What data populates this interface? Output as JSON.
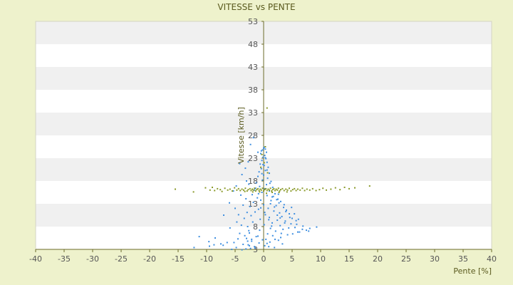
{
  "chart_data": {
    "type": "scatter",
    "title": "VITESSE vs PENTE",
    "xlabel": "Pente [%]",
    "ylabel": "Vitesse [km/h]",
    "xlim": [
      -40,
      40
    ],
    "ylim": [
      3,
      53
    ],
    "x_ticks": [
      -40,
      -35,
      -30,
      -25,
      -20,
      -15,
      -10,
      -5,
      0,
      5,
      10,
      15,
      20,
      25,
      30,
      35,
      40
    ],
    "y_ticks": [
      3,
      8,
      13,
      18,
      23,
      28,
      33,
      38,
      43,
      48,
      53
    ],
    "grid": "horizontal-bands",
    "legend": "none",
    "colors": {
      "plot_bg": "#ffffff",
      "band": "#f0f0f0",
      "page_bg": "#eef2cc",
      "series_blue": "#3f8fe0",
      "series_olive": "#8a9a2a",
      "axis_line": "#6b6b2a"
    },
    "series": [
      {
        "color": "#3f8fe0",
        "points": [
          [
            0.1,
            25.4
          ],
          [
            0.3,
            25.0
          ],
          [
            -0.2,
            24.8
          ],
          [
            0.5,
            24.3
          ],
          [
            -0.5,
            24.0
          ],
          [
            0.2,
            23.6
          ],
          [
            -0.1,
            23.2
          ],
          [
            0.4,
            22.9
          ],
          [
            -0.3,
            22.5
          ],
          [
            0.6,
            22.1
          ],
          [
            -0.6,
            21.7
          ],
          [
            0.1,
            21.4
          ],
          [
            0.8,
            21.0
          ],
          [
            -0.4,
            20.7
          ],
          [
            0.3,
            20.3
          ],
          [
            -0.8,
            20.0
          ],
          [
            1.0,
            19.7
          ],
          [
            0.0,
            19.3
          ],
          [
            -1.0,
            19.0
          ],
          [
            0.7,
            18.6
          ],
          [
            -0.2,
            18.2
          ],
          [
            1.3,
            17.9
          ],
          [
            -1.3,
            17.6
          ],
          [
            0.5,
            17.2
          ],
          [
            -0.7,
            16.8
          ],
          [
            1.6,
            16.6
          ],
          [
            0.2,
            16.3
          ],
          [
            -1.6,
            16.0
          ],
          [
            1.0,
            15.8
          ],
          [
            -0.3,
            15.5
          ],
          [
            2.0,
            15.2
          ],
          [
            -2.0,
            15.0
          ],
          [
            0.6,
            14.8
          ],
          [
            1.5,
            14.5
          ],
          [
            -1.1,
            14.3
          ],
          [
            2.5,
            14.0
          ],
          [
            -0.5,
            13.8
          ],
          [
            3.0,
            13.5
          ],
          [
            -1.8,
            13.3
          ],
          [
            1.2,
            13.0
          ],
          [
            0.0,
            12.8
          ],
          [
            2.2,
            12.6
          ],
          [
            -2.4,
            12.4
          ],
          [
            3.5,
            12.2
          ],
          [
            0.8,
            12.0
          ],
          [
            -0.9,
            11.8
          ],
          [
            4.0,
            11.6
          ],
          [
            1.8,
            11.4
          ],
          [
            -1.5,
            11.2
          ],
          [
            2.8,
            11.0
          ],
          [
            4.5,
            10.8
          ],
          [
            0.3,
            10.6
          ],
          [
            -2.2,
            10.4
          ],
          [
            3.2,
            10.2
          ],
          [
            1.0,
            10.0
          ],
          [
            5.0,
            9.8
          ],
          [
            -0.6,
            9.6
          ],
          [
            2.4,
            9.4
          ],
          [
            3.8,
            9.2
          ],
          [
            -1.9,
            9.0
          ],
          [
            1.5,
            8.8
          ],
          [
            4.8,
            8.6
          ],
          [
            0.1,
            8.4
          ],
          [
            2.9,
            8.2
          ],
          [
            -2.8,
            8.0
          ],
          [
            5.5,
            7.8
          ],
          [
            1.2,
            7.6
          ],
          [
            3.4,
            7.4
          ],
          [
            -0.7,
            7.2
          ],
          [
            2.1,
            7.0
          ],
          [
            6.0,
            6.8
          ],
          [
            -2.5,
            6.6
          ],
          [
            0.7,
            6.4
          ],
          [
            4.2,
            6.2
          ],
          [
            1.6,
            6.0
          ],
          [
            -1.3,
            5.8
          ],
          [
            3.0,
            5.6
          ],
          [
            -3.0,
            5.4
          ],
          [
            0.4,
            5.2
          ],
          [
            2.6,
            5.0
          ],
          [
            -2.1,
            4.8
          ],
          [
            1.1,
            4.6
          ],
          [
            -0.8,
            4.4
          ],
          [
            3.3,
            4.2
          ],
          [
            -2.7,
            4.0
          ],
          [
            0.2,
            3.8
          ],
          [
            -1.6,
            3.6
          ],
          [
            1.9,
            3.4
          ],
          [
            -2.3,
            3.2
          ],
          [
            0.9,
            3.6
          ],
          [
            -1.8,
            27.5
          ],
          [
            -2.3,
            26.0
          ],
          [
            -1.0,
            24.3
          ],
          [
            -2.7,
            22.2
          ],
          [
            -4.2,
            21.8
          ],
          [
            -3.2,
            20.8
          ],
          [
            -3.8,
            19.4
          ],
          [
            -3.0,
            18.0
          ],
          [
            -4.8,
            16.9
          ],
          [
            -2.6,
            17.3
          ],
          [
            -5.3,
            15.8
          ],
          [
            -4.0,
            14.9
          ],
          [
            -3.1,
            14.1
          ],
          [
            -6.0,
            13.2
          ],
          [
            -3.6,
            12.7
          ],
          [
            -5.0,
            12.0
          ],
          [
            -2.9,
            11.1
          ],
          [
            -4.4,
            10.6
          ],
          [
            -7.0,
            10.5
          ],
          [
            -3.4,
            9.8
          ],
          [
            -4.7,
            9.0
          ],
          [
            -3.9,
            8.3
          ],
          [
            -5.9,
            7.7
          ],
          [
            -2.6,
            7.1
          ],
          [
            -4.2,
            6.5
          ],
          [
            -3.3,
            6.0
          ],
          [
            -1.0,
            5.9
          ],
          [
            -4.5,
            5.3
          ],
          [
            -2.8,
            4.8
          ],
          [
            -5.2,
            4.5
          ],
          [
            -3.6,
            4.1
          ],
          [
            -2.5,
            3.8
          ],
          [
            -4.8,
            3.4
          ],
          [
            -3.1,
            3.1
          ],
          [
            -1.5,
            3.3
          ],
          [
            -8.5,
            5.5
          ],
          [
            -9.6,
            4.7
          ],
          [
            -11.3,
            5.8
          ],
          [
            -12.2,
            3.4
          ],
          [
            -7.5,
            4.2
          ],
          [
            -7.1,
            3.9
          ],
          [
            -8.7,
            4.0
          ],
          [
            -9.5,
            3.7
          ],
          [
            -6.4,
            4.5
          ],
          [
            -5.6,
            3.0
          ],
          [
            -2.1,
            5.2
          ],
          [
            -3.8,
            2.9
          ],
          [
            6.8,
            7.4
          ],
          [
            7.5,
            7.2
          ],
          [
            8.1,
            7.6
          ],
          [
            9.3,
            7.9
          ],
          [
            7.9,
            7.0
          ],
          [
            5.1,
            6.4
          ],
          [
            6.3,
            6.8
          ],
          [
            6.9,
            8.1
          ],
          [
            5.7,
            9.3
          ],
          [
            4.6,
            10.0
          ],
          [
            3.9,
            11.3
          ],
          [
            4.9,
            12.2
          ],
          [
            3.6,
            12.8
          ],
          [
            2.7,
            13.2
          ],
          [
            2.3,
            13.9
          ],
          [
            1.7,
            14.6
          ],
          [
            -0.9,
            15.2
          ],
          [
            -1.4,
            16.4
          ],
          [
            1.1,
            17.5
          ],
          [
            -0.3,
            19.6
          ],
          [
            0.6,
            20.4
          ],
          [
            -0.1,
            21.6
          ],
          [
            0.3,
            23.1
          ],
          [
            -0.4,
            24.6
          ],
          [
            0.0,
            25.2
          ],
          [
            2.9,
            9.9
          ],
          [
            5.4,
            10.8
          ],
          [
            6.1,
            9.6
          ],
          [
            3.1,
            6.5
          ],
          [
            2.0,
            5.2
          ],
          [
            0.6,
            4.3
          ],
          [
            -0.2,
            5.1
          ],
          [
            1.4,
            8.1
          ],
          [
            0.9,
            9.5
          ],
          [
            0.2,
            11.1
          ],
          [
            -0.5,
            12.1
          ],
          [
            1.3,
            13.7
          ],
          [
            2.6,
            15.1
          ],
          [
            3.7,
            8.8
          ],
          [
            4.4,
            7.7
          ],
          [
            5.8,
            8.5
          ],
          [
            2.4,
            10.5
          ],
          [
            1.9,
            12.3
          ]
        ]
      },
      {
        "color": "#8a9a2a",
        "points": [
          [
            -15.5,
            16.2
          ],
          [
            -12.3,
            15.6
          ],
          [
            -10.2,
            16.5
          ],
          [
            -9.4,
            16.0
          ],
          [
            -9.0,
            16.6
          ],
          [
            -8.6,
            15.9
          ],
          [
            -8.1,
            16.3
          ],
          [
            -7.6,
            16.1
          ],
          [
            -7.3,
            15.7
          ],
          [
            -6.8,
            16.4
          ],
          [
            -6.3,
            16.0
          ],
          [
            -5.9,
            16.2
          ],
          [
            -5.5,
            15.8
          ],
          [
            -5.1,
            16.5
          ],
          [
            -4.7,
            16.0
          ],
          [
            -4.4,
            16.3
          ],
          [
            -4.1,
            15.9
          ],
          [
            -3.8,
            16.2
          ],
          [
            -3.5,
            16.0
          ],
          [
            -3.2,
            16.4
          ],
          [
            -2.9,
            15.8
          ],
          [
            -2.7,
            16.1
          ],
          [
            -2.4,
            16.3
          ],
          [
            -2.2,
            15.9
          ],
          [
            -2.0,
            16.2
          ],
          [
            -1.8,
            16.0
          ],
          [
            -1.6,
            16.4
          ],
          [
            -1.4,
            15.8
          ],
          [
            -1.2,
            16.1
          ],
          [
            -1.0,
            16.3
          ],
          [
            -0.8,
            15.9
          ],
          [
            -0.6,
            16.2
          ],
          [
            -0.4,
            16.0
          ],
          [
            -0.2,
            16.4
          ],
          [
            0.0,
            15.8
          ],
          [
            0.2,
            16.1
          ],
          [
            0.4,
            16.3
          ],
          [
            0.6,
            15.9
          ],
          [
            0.8,
            16.2
          ],
          [
            1.0,
            16.0
          ],
          [
            1.2,
            16.4
          ],
          [
            1.4,
            15.8
          ],
          [
            1.6,
            16.1
          ],
          [
            1.8,
            16.3
          ],
          [
            2.0,
            15.9
          ],
          [
            2.2,
            16.2
          ],
          [
            2.4,
            16.0
          ],
          [
            2.6,
            16.4
          ],
          [
            2.8,
            15.8
          ],
          [
            3.0,
            16.1
          ],
          [
            3.3,
            16.3
          ],
          [
            3.6,
            15.9
          ],
          [
            3.9,
            16.2
          ],
          [
            4.2,
            16.0
          ],
          [
            4.5,
            16.4
          ],
          [
            4.8,
            15.8
          ],
          [
            5.1,
            16.1
          ],
          [
            5.4,
            16.3
          ],
          [
            5.7,
            15.9
          ],
          [
            6.0,
            16.2
          ],
          [
            6.4,
            16.0
          ],
          [
            6.8,
            16.4
          ],
          [
            7.2,
            15.9
          ],
          [
            7.6,
            16.2
          ],
          [
            8.1,
            16.0
          ],
          [
            8.6,
            16.3
          ],
          [
            9.2,
            15.9
          ],
          [
            9.8,
            16.1
          ],
          [
            10.4,
            16.4
          ],
          [
            11.0,
            16.0
          ],
          [
            11.8,
            16.2
          ],
          [
            12.6,
            16.5
          ],
          [
            13.4,
            16.1
          ],
          [
            14.2,
            16.6
          ],
          [
            15.0,
            16.3
          ],
          [
            16.0,
            16.5
          ],
          [
            18.6,
            16.9
          ],
          [
            0.6,
            34.0
          ],
          [
            0.3,
            25.5
          ],
          [
            -0.3,
            23.8
          ],
          [
            0.1,
            22.0
          ],
          [
            -0.5,
            21.0
          ],
          [
            0.7,
            19.8
          ],
          [
            0.5,
            15.3
          ],
          [
            -0.7,
            15.6
          ],
          [
            1.5,
            15.5
          ],
          [
            -1.9,
            15.6
          ],
          [
            2.7,
            15.5
          ],
          [
            -3.3,
            15.7
          ],
          [
            4.1,
            15.6
          ]
        ]
      }
    ]
  }
}
